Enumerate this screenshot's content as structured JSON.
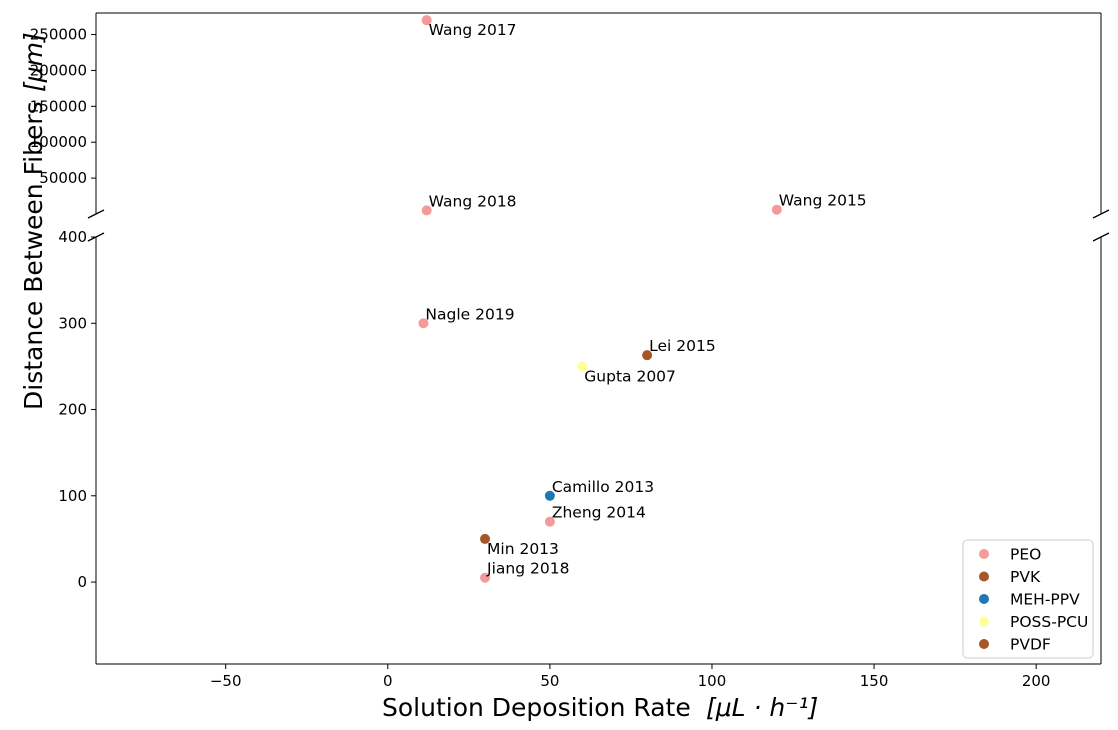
{
  "chart_data": {
    "type": "scatter",
    "title": "",
    "xlabel": "Solution Deposition Rate",
    "xlabel_unit": "[μL · h⁻¹]",
    "ylabel": "Distance Between Fibers",
    "ylabel_unit": "[μm]",
    "broken_y_axis": true,
    "upper_panel": {
      "ylim": [
        0,
        280000
      ],
      "yticks": [
        50000,
        100000,
        150000,
        200000,
        250000
      ],
      "ytick_labels": [
        "50000",
        "100000",
        "150000",
        "200000",
        "250000"
      ]
    },
    "lower_panel": {
      "ylim": [
        -95,
        400
      ],
      "yticks": [
        0,
        100,
        200,
        300,
        400
      ],
      "ytick_labels": [
        "0",
        "100",
        "200",
        "300",
        "400"
      ]
    },
    "xlim": [
      -90,
      220
    ],
    "xticks": [
      -50,
      0,
      50,
      100,
      150,
      200
    ],
    "xtick_labels": [
      "−50",
      "0",
      "50",
      "100",
      "150",
      "200"
    ],
    "grid": false,
    "legend_position": "bottom-right",
    "series": [
      {
        "name": "PEO",
        "color": "#f59a9a"
      },
      {
        "name": "PVK",
        "color": "#a65628"
      },
      {
        "name": "MEH-PPV",
        "color": "#1f77b4"
      },
      {
        "name": "POSS-PCU",
        "color": "#ffff99"
      },
      {
        "name": "PVDF",
        "color": "#a65628"
      }
    ],
    "points": [
      {
        "label": "Wang 2017",
        "series": "PEO",
        "x": 12,
        "y": 270000,
        "panel": "upper",
        "label_pos": "below"
      },
      {
        "label": "Wang 2018",
        "series": "PEO",
        "x": 12,
        "y": 5000,
        "panel": "upper",
        "label_pos": "above"
      },
      {
        "label": "Wang 2015",
        "series": "PEO",
        "x": 120,
        "y": 6000,
        "panel": "upper",
        "label_pos": "above"
      },
      {
        "label": "Nagle 2019",
        "series": "PEO",
        "x": 11,
        "y": 300,
        "panel": "lower",
        "label_pos": "above"
      },
      {
        "label": "Lei 2015",
        "series": "PVK",
        "x": 80,
        "y": 263,
        "panel": "lower",
        "label_pos": "above"
      },
      {
        "label": "Gupta 2007",
        "series": "POSS-PCU",
        "x": 60,
        "y": 250,
        "panel": "lower",
        "label_pos": "below"
      },
      {
        "label": "Camillo 2013",
        "series": "MEH-PPV",
        "x": 50,
        "y": 100,
        "panel": "lower",
        "label_pos": "above"
      },
      {
        "label": "Zheng 2014",
        "series": "PEO",
        "x": 50,
        "y": 70,
        "panel": "lower",
        "label_pos": "above"
      },
      {
        "label": "Min 2013",
        "series": "PVDF",
        "x": 30,
        "y": 50,
        "panel": "lower",
        "label_pos": "below"
      },
      {
        "label": "Jiang 2018",
        "series": "PEO",
        "x": 30,
        "y": 5,
        "panel": "lower",
        "label_pos": "above"
      }
    ]
  }
}
